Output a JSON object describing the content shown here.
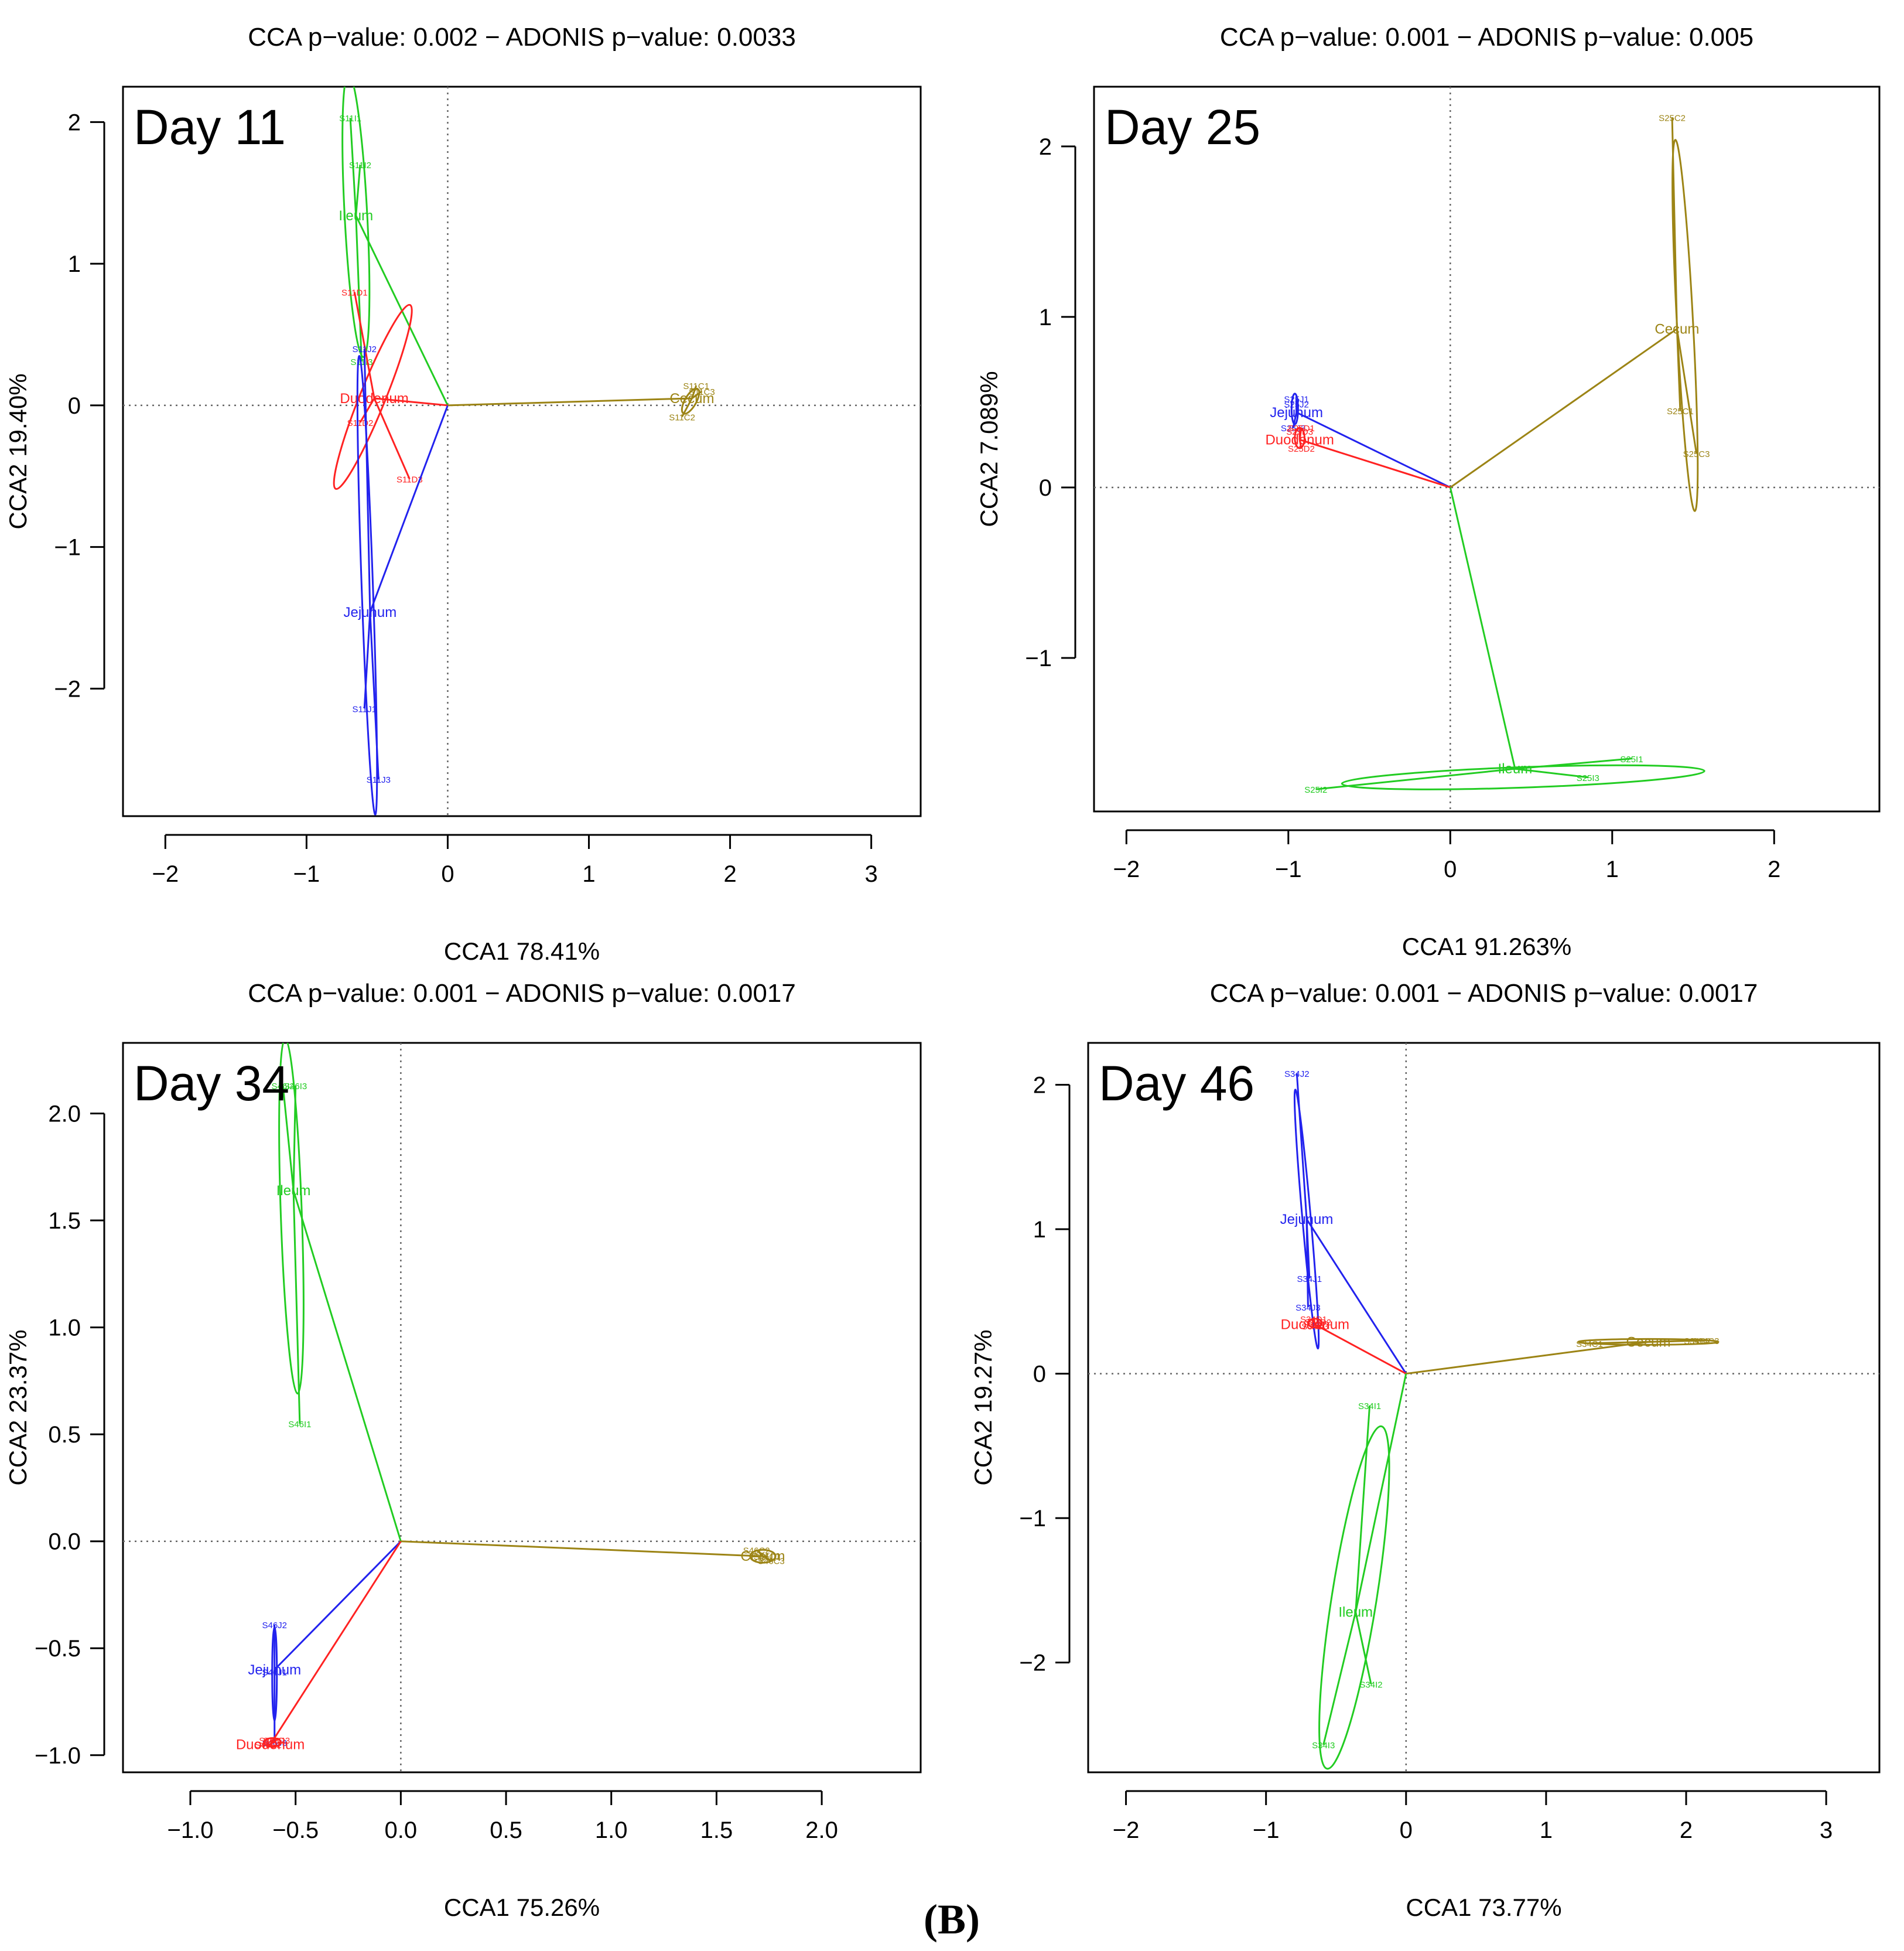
{
  "figure_label": "(B)",
  "chart_data": [
    {
      "type": "scatter",
      "panel_label": "Day 11",
      "title": "CCA p−value: 0.002 − ADONIS p−value: 0.0033",
      "xlabel": "CCA1 78.41%",
      "ylabel": "CCA2 19.40%",
      "xlim": [
        -2.3,
        3.35
      ],
      "ylim": [
        -2.9,
        2.25
      ],
      "xticks": [
        "−2",
        "−1",
        "0",
        "1",
        "2",
        "3"
      ],
      "xtick_values": [
        -2,
        -1,
        0,
        1,
        2,
        3
      ],
      "yticks": [
        "−2",
        "−1",
        "0",
        "1",
        "2"
      ],
      "ytick_values": [
        -2,
        -1,
        0,
        1,
        2
      ],
      "groups": [
        {
          "name": "Ileum",
          "color": "#22cc22",
          "centroid": [
            -0.65,
            1.34
          ],
          "ellipse": {
            "cx": -0.65,
            "cy": 1.34,
            "rx": 0.08,
            "ry": 1.0,
            "angle": -3
          },
          "points": [
            {
              "label": "S11I1",
              "x": -0.69,
              "y": 2.03
            },
            {
              "label": "S11I2",
              "x": -0.62,
              "y": 1.7
            },
            {
              "label": "S11I3",
              "x": -0.61,
              "y": 0.31
            }
          ]
        },
        {
          "name": "Duodenum",
          "color": "#ff2222",
          "centroid": [
            -0.52,
            0.05
          ],
          "ellipse": {
            "cx": -0.53,
            "cy": 0.06,
            "rx": 0.09,
            "ry": 0.7,
            "angle": 22
          },
          "points": [
            {
              "label": "S11D1",
              "x": -0.66,
              "y": 0.8
            },
            {
              "label": "S11D2",
              "x": -0.62,
              "y": -0.12
            },
            {
              "label": "S11D3",
              "x": -0.27,
              "y": -0.52
            }
          ]
        },
        {
          "name": "Jejunum",
          "color": "#2222ee",
          "centroid": [
            -0.55,
            -1.46
          ],
          "ellipse": {
            "cx": -0.57,
            "cy": -1.27,
            "rx": 0.04,
            "ry": 1.62,
            "angle": -2
          },
          "points": [
            {
              "label": "S11J1",
              "x": -0.59,
              "y": -2.14
            },
            {
              "label": "S11J2",
              "x": -0.59,
              "y": 0.4
            },
            {
              "label": "S11J3",
              "x": -0.49,
              "y": -2.64
            }
          ]
        },
        {
          "name": "Cecum",
          "color": "#9c8415",
          "centroid": [
            1.73,
            0.05
          ],
          "ellipse": {
            "cx": 1.72,
            "cy": 0.03,
            "rx": 0.04,
            "ry": 0.1,
            "angle": 30
          },
          "points": [
            {
              "label": "S11C1",
              "x": 1.76,
              "y": 0.14
            },
            {
              "label": "S11C3",
              "x": 1.8,
              "y": 0.1
            },
            {
              "label": "S11C2",
              "x": 1.66,
              "y": -0.08
            }
          ]
        }
      ]
    },
    {
      "type": "scatter",
      "panel_label": "Day 25",
      "title": "CCA p−value: 0.001 − ADONIS p−value: 0.005",
      "xlabel": "CCA1 91.263%",
      "ylabel": "CCA2  7.089%",
      "xlim": [
        -2.2,
        2.65
      ],
      "ylim": [
        -1.9,
        2.35
      ],
      "xticks": [
        "−2",
        "−1",
        "0",
        "1",
        "2"
      ],
      "xtick_values": [
        -2,
        -1,
        0,
        1,
        2
      ],
      "yticks": [
        "−1",
        "0",
        "1",
        "2"
      ],
      "ytick_values": [
        -1,
        0,
        1,
        2
      ],
      "groups": [
        {
          "name": "Cecum",
          "color": "#9c8415",
          "centroid": [
            1.4,
            0.93
          ],
          "ellipse": {
            "cx": 1.45,
            "cy": 0.95,
            "rx": 0.05,
            "ry": 1.09,
            "angle": -3
          },
          "points": [
            {
              "label": "S25C2",
              "x": 1.37,
              "y": 2.17
            },
            {
              "label": "S25C1",
              "x": 1.42,
              "y": 0.45
            },
            {
              "label": "S25C3",
              "x": 1.52,
              "y": 0.2
            }
          ]
        },
        {
          "name": "Jejunum",
          "color": "#2222ee",
          "centroid": [
            -0.95,
            0.44
          ],
          "ellipse": {
            "cx": -0.96,
            "cy": 0.46,
            "rx": 0.02,
            "ry": 0.09,
            "angle": 0
          },
          "points": [
            {
              "label": "S25J1",
              "x": -0.95,
              "y": 0.52
            },
            {
              "label": "S25J2",
              "x": -0.95,
              "y": 0.49
            },
            {
              "label": "S25J3",
              "x": -0.97,
              "y": 0.35
            }
          ]
        },
        {
          "name": "Duodenum",
          "color": "#ff2222",
          "centroid": [
            -0.93,
            0.28
          ],
          "ellipse": {
            "cx": -0.93,
            "cy": 0.29,
            "rx": 0.03,
            "ry": 0.06,
            "angle": 0
          },
          "points": [
            {
              "label": "S25D1",
              "x": -0.92,
              "y": 0.35
            },
            {
              "label": "S25D3",
              "x": -0.93,
              "y": 0.33
            },
            {
              "label": "S25D2",
              "x": -0.92,
              "y": 0.23
            }
          ]
        },
        {
          "name": "Ileum",
          "color": "#22cc22",
          "centroid": [
            0.4,
            -1.65
          ],
          "ellipse": {
            "cx": 0.45,
            "cy": -1.7,
            "rx": 1.12,
            "ry": 0.06,
            "angle": -2
          },
          "points": [
            {
              "label": "S25I1",
              "x": 1.12,
              "y": -1.59
            },
            {
              "label": "S25I3",
              "x": 0.85,
              "y": -1.7
            },
            {
              "label": "S25I2",
              "x": -0.83,
              "y": -1.77
            }
          ]
        }
      ]
    },
    {
      "type": "scatter",
      "panel_label": "Day 34",
      "title": "CCA p−value: 0.001 − ADONIS p−value: 0.0017",
      "xlabel": "CCA1 75.26%",
      "ylabel": "CCA2 23.37%",
      "xlim": [
        -1.32,
        2.47
      ],
      "ylim": [
        -1.08,
        2.33
      ],
      "xticks": [
        "−1.0",
        "−0.5",
        "0.0",
        "0.5",
        "1.0",
        "1.5",
        "2.0"
      ],
      "xtick_values": [
        -1.0,
        -0.5,
        0.0,
        0.5,
        1.0,
        1.5,
        2.0
      ],
      "yticks": [
        "−1.0",
        "−0.5",
        "0.0",
        "0.5",
        "1.0",
        "1.5",
        "2.0"
      ],
      "ytick_values": [
        -1.0,
        -0.5,
        0.0,
        0.5,
        1.0,
        1.5,
        2.0
      ],
      "groups": [
        {
          "name": "Ileum",
          "color": "#22cc22",
          "centroid": [
            -0.51,
            1.64
          ],
          "ellipse": {
            "cx": -0.52,
            "cy": 1.52,
            "rx": 0.05,
            "ry": 0.83,
            "angle": -2
          },
          "points": [
            {
              "label": "S46I3",
              "x": -0.5,
              "y": 2.13
            },
            {
              "label": "S46I2",
              "x": -0.56,
              "y": 2.13
            },
            {
              "label": "S46I1",
              "x": -0.48,
              "y": 0.55
            }
          ]
        },
        {
          "name": "Jejunum",
          "color": "#2222ee",
          "centroid": [
            -0.6,
            -0.6
          ],
          "ellipse": {
            "cx": -0.6,
            "cy": -0.62,
            "rx": 0.01,
            "ry": 0.22,
            "angle": 0
          },
          "points": [
            {
              "label": "S46J2",
              "x": -0.6,
              "y": -0.39
            },
            {
              "label": "S46J1",
              "x": -0.6,
              "y": -0.61
            },
            {
              "label": "S46J3",
              "x": -0.6,
              "y": -0.94
            }
          ]
        },
        {
          "name": "Duodenum",
          "color": "#ff2222",
          "centroid": [
            -0.62,
            -0.95
          ],
          "ellipse": {
            "cx": -0.61,
            "cy": -0.94,
            "rx": 0.04,
            "ry": 0.02,
            "angle": 0
          },
          "points": [
            {
              "label": "S46D1",
              "x": -0.61,
              "y": -0.93
            },
            {
              "label": "S46D3",
              "x": -0.59,
              "y": -0.93
            },
            {
              "label": "S46D2",
              "x": -0.63,
              "y": -0.95
            }
          ]
        },
        {
          "name": "Cecum",
          "color": "#9c8415",
          "centroid": [
            1.72,
            -0.07
          ],
          "ellipse": {
            "cx": 1.72,
            "cy": -0.07,
            "rx": 0.06,
            "ry": 0.03,
            "angle": 0
          },
          "points": [
            {
              "label": "S46C2",
              "x": 1.69,
              "y": -0.04
            },
            {
              "label": "S46C1",
              "x": 1.74,
              "y": -0.07
            },
            {
              "label": "S46C3",
              "x": 1.76,
              "y": -0.09
            }
          ]
        }
      ]
    },
    {
      "type": "scatter",
      "panel_label": "Day 46",
      "title": "CCA p−value: 0.001 − ADONIS p−value: 0.0017",
      "xlabel": "CCA1 73.77%",
      "ylabel": "CCA2 19.27%",
      "xlim": [
        -2.27,
        3.38
      ],
      "ylim": [
        -2.76,
        2.29
      ],
      "xticks": [
        "−2",
        "−1",
        "0",
        "1",
        "2",
        "3"
      ],
      "xtick_values": [
        -2,
        -1,
        0,
        1,
        2,
        3
      ],
      "yticks": [
        "−2",
        "−1",
        "0",
        "1",
        "2"
      ],
      "ytick_values": [
        -2,
        -1,
        0,
        1,
        2
      ],
      "groups": [
        {
          "name": "Jejunum",
          "color": "#2222ee",
          "centroid": [
            -0.71,
            1.07
          ],
          "ellipse": {
            "cx": -0.71,
            "cy": 1.07,
            "rx": 0.03,
            "ry": 0.9,
            "angle": -5
          },
          "points": [
            {
              "label": "S34J2",
              "x": -0.78,
              "y": 2.08
            },
            {
              "label": "S34J1",
              "x": -0.69,
              "y": 0.66
            },
            {
              "label": "S34J3",
              "x": -0.7,
              "y": 0.46
            }
          ]
        },
        {
          "name": "Duodenum",
          "color": "#ff2222",
          "centroid": [
            -0.65,
            0.34
          ],
          "ellipse": {
            "cx": -0.65,
            "cy": 0.35,
            "rx": 0.05,
            "ry": 0.03,
            "angle": 0
          },
          "points": [
            {
              "label": "S34D1",
              "x": -0.66,
              "y": 0.38
            },
            {
              "label": "S34D2",
              "x": -0.63,
              "y": 0.36
            },
            {
              "label": "S34D3",
              "x": -0.65,
              "y": 0.33
            }
          ]
        },
        {
          "name": "Cecum",
          "color": "#9c8415",
          "centroid": [
            1.73,
            0.22
          ],
          "ellipse": {
            "cx": 1.73,
            "cy": 0.22,
            "rx": 0.5,
            "ry": 0.02,
            "angle": 0
          },
          "points": [
            {
              "label": "S34C1",
              "x": 1.31,
              "y": 0.21
            },
            {
              "label": "S34C2",
              "x": 2.08,
              "y": 0.23
            },
            {
              "label": "S34C3",
              "x": 2.14,
              "y": 0.23
            }
          ]
        },
        {
          "name": "Ileum",
          "color": "#22cc22",
          "centroid": [
            -0.36,
            -1.65
          ],
          "ellipse": {
            "cx": -0.37,
            "cy": -1.55,
            "rx": 0.16,
            "ry": 1.2,
            "angle": 9
          },
          "points": [
            {
              "label": "S34I1",
              "x": -0.26,
              "y": -0.22
            },
            {
              "label": "S34I2",
              "x": -0.25,
              "y": -2.15
            },
            {
              "label": "S34I3",
              "x": -0.59,
              "y": -2.57
            }
          ]
        }
      ]
    }
  ]
}
